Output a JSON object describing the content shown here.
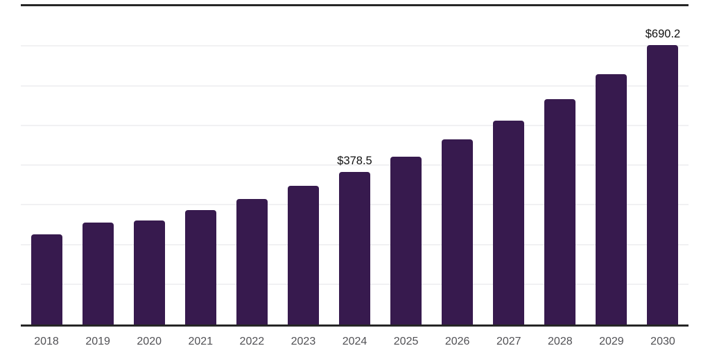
{
  "chart_data": {
    "type": "bar",
    "title": "",
    "categories": [
      "2018",
      "2019",
      "2020",
      "2021",
      "2022",
      "2023",
      "2024",
      "2025",
      "2026",
      "2027",
      "2028",
      "2029",
      "2030"
    ],
    "values": [
      225.0,
      254.0,
      259.0,
      284.5,
      312.0,
      344.0,
      378.5,
      416.0,
      458.0,
      504.0,
      557.0,
      617.5,
      690.2
    ],
    "value_labels": [
      "",
      "",
      "",
      "",
      "",
      "",
      "$378.5",
      "",
      "",
      "",
      "",
      "",
      "$690.2"
    ],
    "value_prefix": "$",
    "xlabel": "",
    "ylabel": "",
    "ylim": [
      0,
      800
    ],
    "gridline_interval": 100,
    "grid": "horizontal-faint",
    "legend": "none",
    "axis_lines": [
      "top",
      "bottom"
    ]
  },
  "colors": {
    "bar": "#371A4E",
    "axis_line": "#262626",
    "gridline": "#f1f1f3",
    "tick_label": "#515155",
    "value_label": "#111111",
    "background": "#ffffff"
  }
}
